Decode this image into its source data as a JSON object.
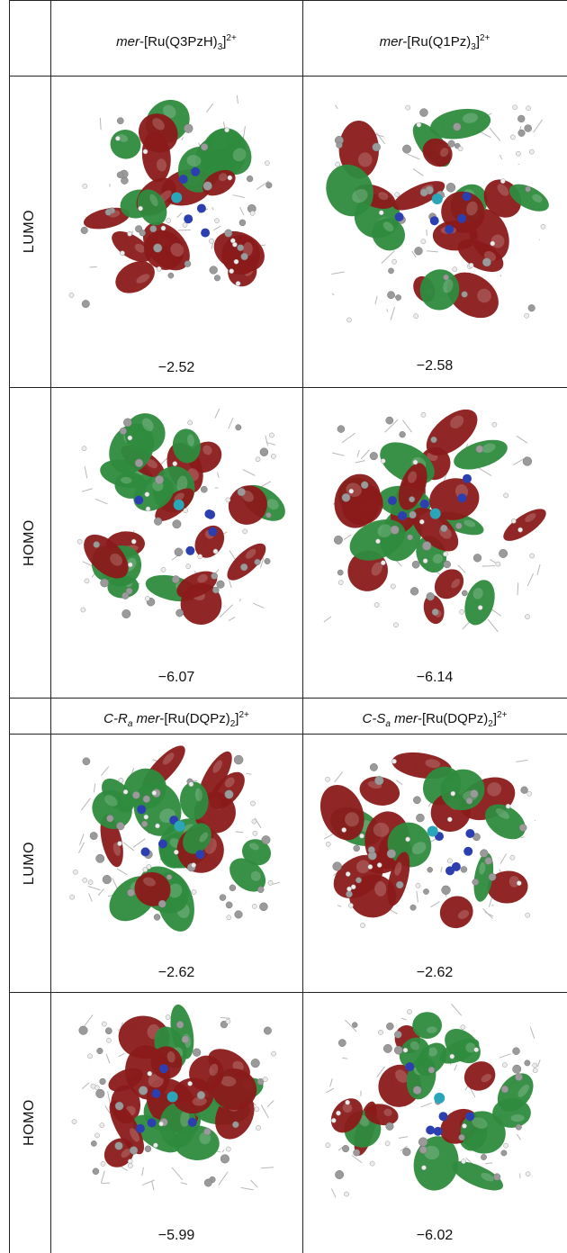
{
  "headers": {
    "top_col1": {
      "prefix": "mer",
      "formula": "-[Ru(Q3PzH)",
      "sub": "3",
      "close": "]",
      "sup": "2+"
    },
    "top_col2": {
      "prefix": "mer",
      "formula": "-[Ru(Q1Pz)",
      "sub": "3",
      "close": "]",
      "sup": "2+"
    },
    "mid_col1": {
      "prefix": "C-R",
      "prefix_sub": "a",
      "mid": " mer",
      "formula": "-[Ru(DQPz)",
      "sub": "2",
      "close": "]",
      "sup": "2+"
    },
    "mid_col2": {
      "prefix": "C-S",
      "prefix_sub": "a",
      "mid": " mer",
      "formula": "-[Ru(DQPz)",
      "sub": "2",
      "close": "]",
      "sup": "2+"
    }
  },
  "row_labels": {
    "r1": "LUMO",
    "r2": "HOMO",
    "r3": "LUMO",
    "r4": "HOMO"
  },
  "energies": {
    "r1c1": "−2.52",
    "r1c2": "−2.58",
    "r2c1": "−6.07",
    "r2c2": "−6.14",
    "r3c1": "−2.62",
    "r3c2": "−2.62",
    "r4c1": "−5.99",
    "r4c2": "−6.02"
  },
  "colors": {
    "lobe_red": "#8b1a1a",
    "lobe_green": "#2e8b3e",
    "atom_carbon": "#9a9a9a",
    "atom_nitrogen": "#2c3fb0",
    "atom_ruthenium": "#2aa6b8",
    "atom_hydrogen": "#ececec"
  }
}
